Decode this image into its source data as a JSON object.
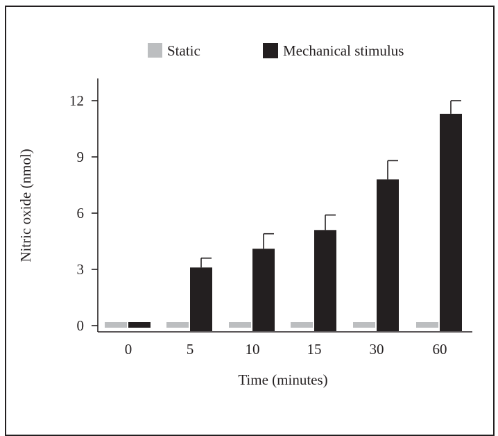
{
  "chart_data": {
    "type": "bar",
    "title": "",
    "xlabel": "Time (minutes)",
    "ylabel": "Nitric oxide (nmol)",
    "categories": [
      "0",
      "5",
      "10",
      "15",
      "30",
      "60"
    ],
    "ylim": [
      0,
      12.5
    ],
    "yticks": [
      "0",
      "3",
      "6",
      "9",
      "12"
    ],
    "legend_position": "top",
    "grid": false,
    "series": [
      {
        "name": "Static",
        "color": "#bcbec0",
        "values": [
          0,
          0,
          0,
          0,
          0,
          0
        ],
        "errors": [
          0,
          0,
          0,
          0,
          0,
          0
        ]
      },
      {
        "name": "Mechanical stimulus",
        "color": "#231f20",
        "values": [
          0,
          3.1,
          4.1,
          5.1,
          7.8,
          11.3
        ],
        "errors": [
          0,
          0.5,
          0.8,
          0.8,
          1.0,
          0.7
        ]
      }
    ]
  }
}
